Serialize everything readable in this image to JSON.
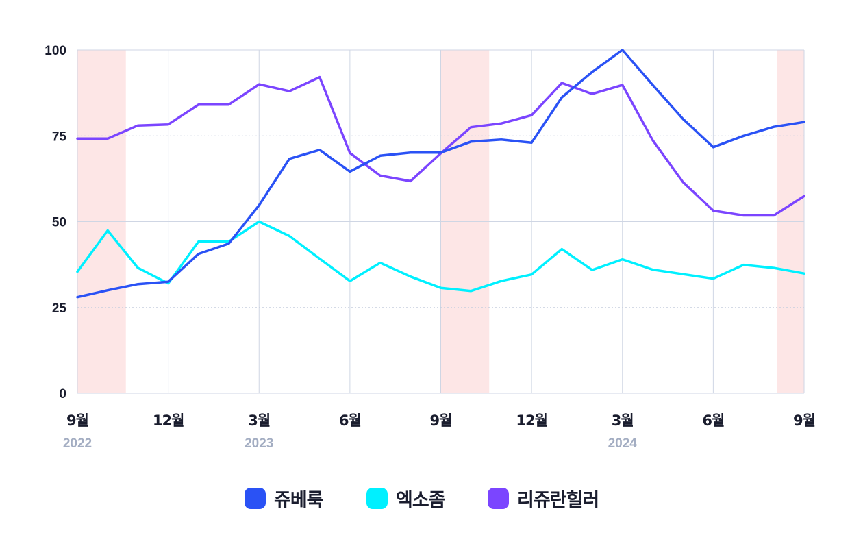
{
  "chart_data": {
    "type": "line",
    "ylim": [
      0,
      100
    ],
    "yticks": [
      "0",
      "25",
      "50",
      "75",
      "100"
    ],
    "x": [
      "2022-09",
      "2022-10",
      "2022-11",
      "2022-12",
      "2023-01",
      "2023-02",
      "2023-03",
      "2023-04",
      "2023-05",
      "2023-06",
      "2023-07",
      "2023-08",
      "2023-09",
      "2023-10",
      "2023-11",
      "2023-12",
      "2024-01",
      "2024-02",
      "2024-03",
      "2024-04",
      "2024-05",
      "2024-06",
      "2024-07",
      "2024-08",
      "2024-09"
    ],
    "xticks": [
      {
        "label": "9월",
        "year": "2022"
      },
      {
        "label": "12월",
        "year": ""
      },
      {
        "label": "3월",
        "year": "2023"
      },
      {
        "label": "6월",
        "year": ""
      },
      {
        "label": "9월",
        "year": ""
      },
      {
        "label": "12월",
        "year": ""
      },
      {
        "label": "3월",
        "year": "2024"
      },
      {
        "label": "6월",
        "year": ""
      },
      {
        "label": "9월",
        "year": ""
      }
    ],
    "shaded_periods": [
      {
        "start": "2022-09",
        "end": "2022-10"
      },
      {
        "start": "2023-09",
        "end": "2023-10"
      },
      {
        "start": "2024-08",
        "end": "2024-09"
      }
    ],
    "series": [
      {
        "name": "쥬베룩",
        "color": "#2a52f5",
        "values": [
          28,
          30,
          31.8,
          32.5,
          40.6,
          43.6,
          54.8,
          68.3,
          70.9,
          64.6,
          69.2,
          70.1,
          70.1,
          73.3,
          73.9,
          73,
          86.2,
          93.6,
          100,
          89.8,
          79.9,
          71.7,
          75,
          77.6,
          79
        ]
      },
      {
        "name": "엑소좀",
        "color": "#00f0ff",
        "values": [
          35.4,
          47.4,
          36.5,
          32,
          44.2,
          44.2,
          50,
          45.8,
          39.2,
          32.7,
          38,
          34,
          30.7,
          29.8,
          32.7,
          34.6,
          42,
          35.9,
          39,
          36,
          34.7,
          33.4,
          37.4,
          36.5,
          34.9
        ]
      },
      {
        "name": "리쥬란힐러",
        "color": "#7b45ff",
        "values": [
          74.2,
          74.2,
          78,
          78.3,
          84.1,
          84.1,
          90,
          88,
          92.1,
          70,
          63.4,
          61.8,
          69.9,
          77.5,
          78.6,
          81,
          90.4,
          87.2,
          89.8,
          73.7,
          61.5,
          53.2,
          51.8,
          51.8,
          57.4
        ]
      }
    ]
  }
}
